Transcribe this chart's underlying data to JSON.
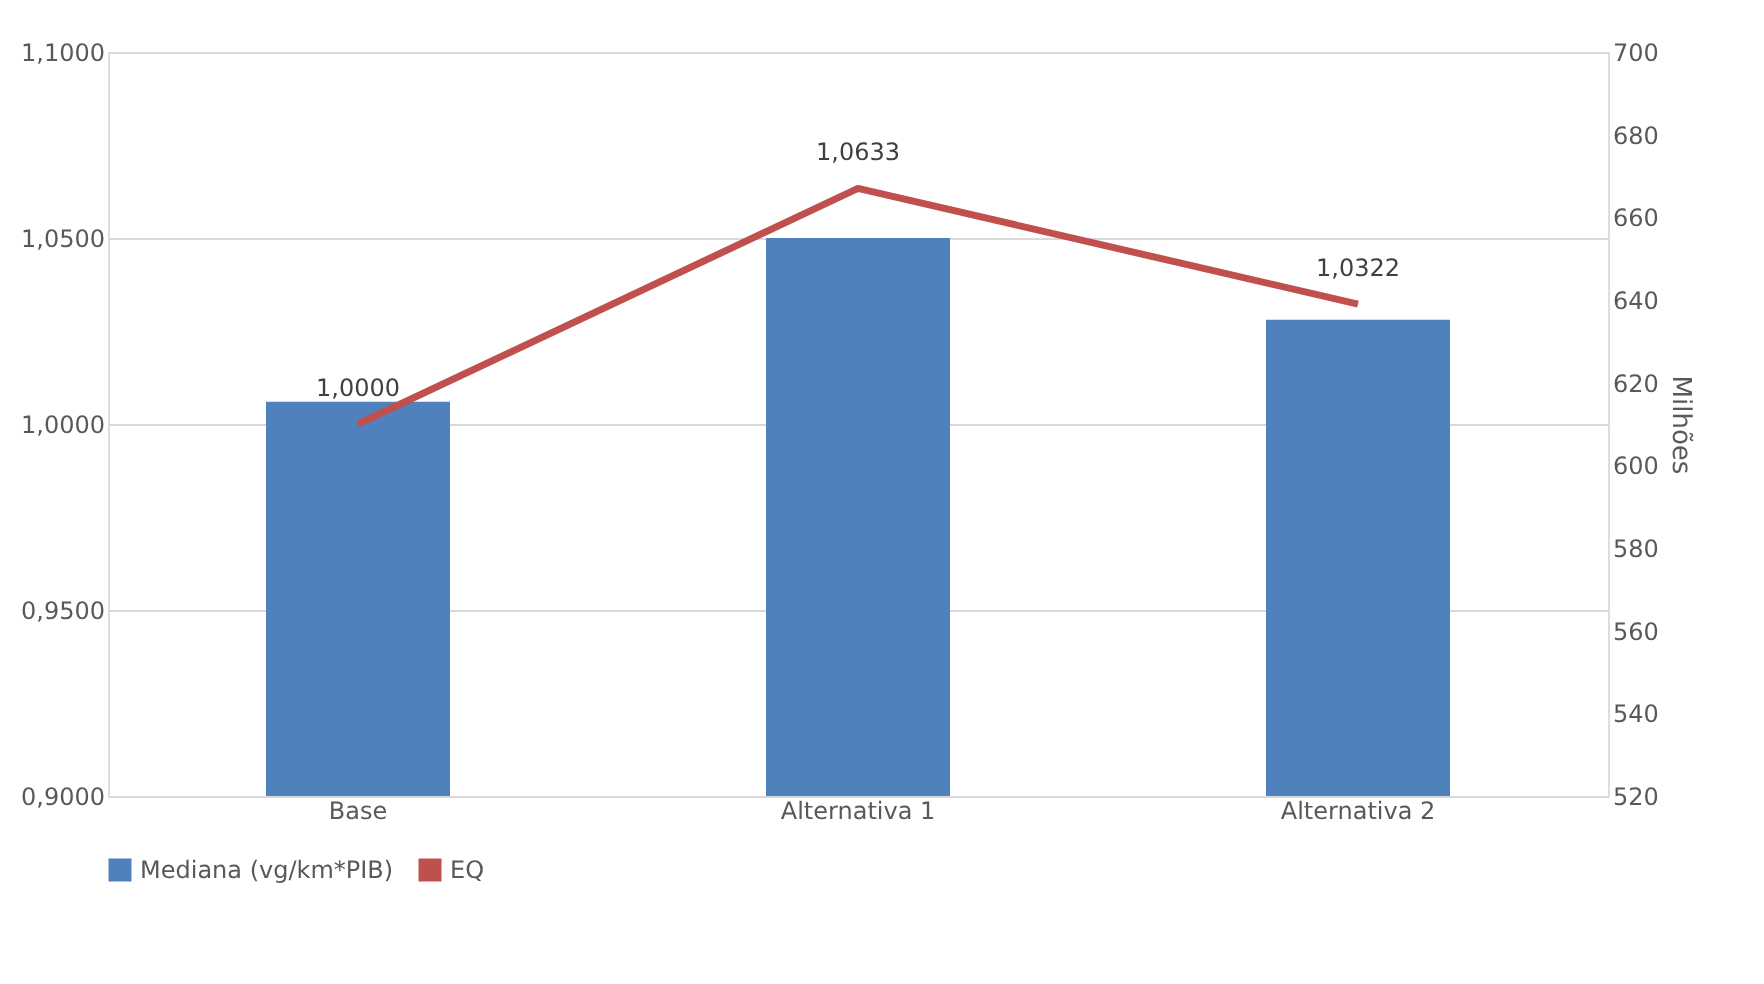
{
  "chart_data": {
    "type": "bar",
    "categories": [
      "Base",
      "Alternativa 1",
      "Alternativa 2"
    ],
    "y2label": "Milhões",
    "series": [
      {
        "name": "Mediana (vg/km*PIB)",
        "color": "#4f81bd",
        "values": [
          1.006,
          1.05,
          1.028
        ]
      },
      {
        "name": "EQ",
        "type": "line",
        "axis": "y2",
        "color": "#c0504d",
        "values": [
          610,
          667,
          639
        ]
      }
    ],
    "annotations": [
      "1,0000",
      "1,0633",
      "1,0322"
    ],
    "ylim": [
      0.9,
      1.1
    ],
    "yticks": [
      {
        "value": 0.9,
        "label": "0,9000"
      },
      {
        "value": 0.95,
        "label": "0,9500"
      },
      {
        "value": 1.0,
        "label": "1,0000"
      },
      {
        "value": 1.05,
        "label": "1,0500"
      },
      {
        "value": 1.1,
        "label": "1,1000"
      }
    ],
    "y2lim": [
      520,
      700
    ],
    "y2ticks": [
      520,
      540,
      560,
      580,
      600,
      620,
      640,
      660,
      680,
      700
    ],
    "grid": "y",
    "legend": "bottom"
  }
}
